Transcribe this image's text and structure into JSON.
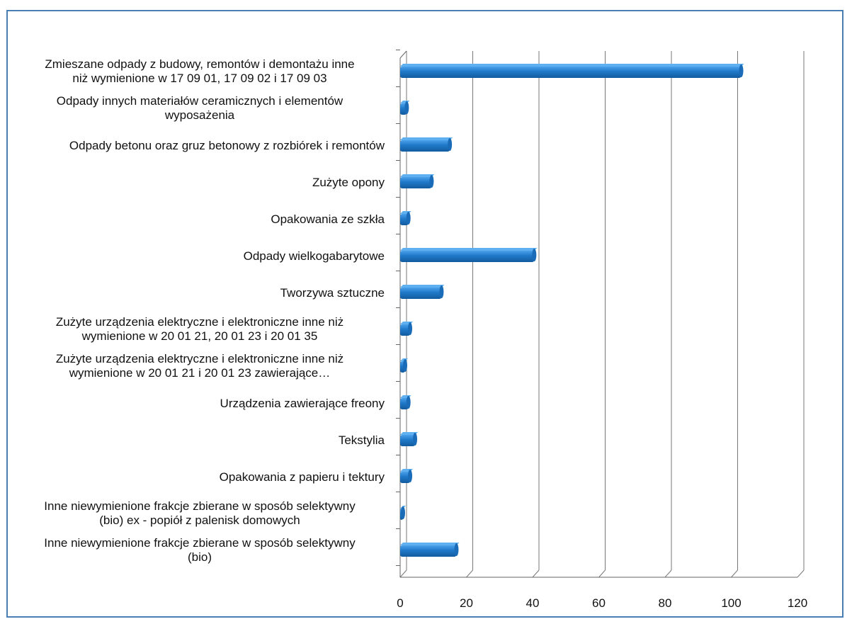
{
  "chart_data": {
    "type": "bar",
    "orientation": "horizontal",
    "categories": [
      "Zmieszane odpady z budowy, remontów i demontażu inne niż wymienione w 17 09 01, 17 09 02 i 17 09 03",
      "Odpady innych materiałów ceramicznych i elementów wyposażenia",
      "Odpady betonu oraz gruz betonowy z rozbiórek i remontów",
      "Zużyte opony",
      "Opakowania ze szkła",
      "Odpady wielkogabarytowe",
      "Tworzywa sztuczne",
      "Zużyte urządzenia elektryczne i elektroniczne inne niż wymienione w 20 01 21, 20 01 23 i 20 01 35",
      "Zużyte urządzenia elektryczne i elektroniczne inne niż wymienione w 20 01 21 i 20 01 23 zawierające…",
      "Urządzenia zawierające freony",
      "Tekstylia",
      "Opakowania z papieru i tektury",
      "Inne niewymienione frakcje zbierane w sposób selektywny (bio) ex - popiół z palenisk domowych",
      "Inne niewymienione frakcje zbierane w sposób selektywny (bio)"
    ],
    "values": [
      103,
      2,
      15,
      9.5,
      2.5,
      40.5,
      12.5,
      3,
      1.5,
      2.5,
      4.5,
      3,
      0.8,
      17
    ],
    "xlim": [
      0,
      120
    ],
    "xticks": [
      "0",
      "20",
      "40",
      "60",
      "80",
      "100",
      "120"
    ],
    "grid": true,
    "bar_color": "#1f78c8",
    "title": "",
    "xlabel": "",
    "ylabel": ""
  }
}
